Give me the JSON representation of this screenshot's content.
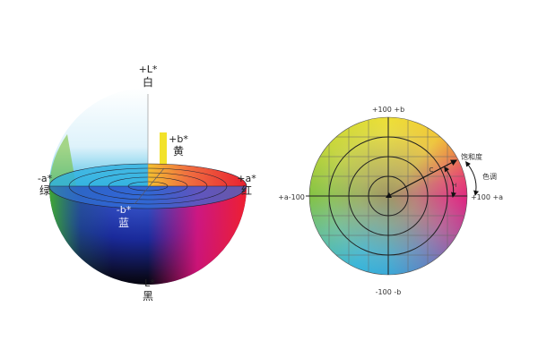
{
  "sphere": {
    "top_axis": "+L*",
    "top_name": "白",
    "bottom_axis": "-L*",
    "bottom_name": "黑",
    "left_axis": "-a*",
    "left_name": "绿",
    "right_axis": "+a*",
    "right_name": "红",
    "yellow_axis": "+b*",
    "yellow_name": "黄",
    "blue_axis": "-b*",
    "blue_name": "蓝"
  },
  "wheel": {
    "top": "+100 +b",
    "bottom": "-100 -b",
    "left": "+a-100",
    "right": "+100 +a",
    "chroma_label": "饱和度",
    "hue_label": "色调",
    "c_marker": "C",
    "h_marker": "H"
  },
  "colors": {
    "red": "#e8203a",
    "yellow": "#f2e22a",
    "green": "#3a9a2a",
    "blue": "#1a3aa8",
    "magenta": "#e0147e",
    "cyan": "#2ab4e0"
  }
}
